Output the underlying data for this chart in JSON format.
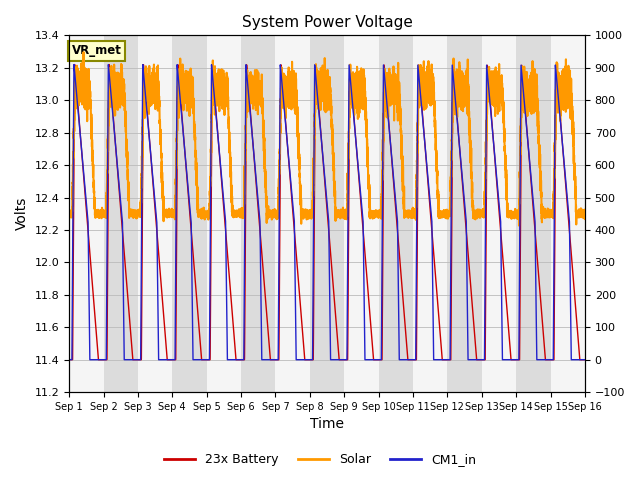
{
  "title": "System Power Voltage",
  "xlabel": "Time",
  "ylabel_left": "Volts",
  "ylim_left": [
    11.2,
    13.4
  ],
  "ylim_right": [
    -100,
    1000
  ],
  "yticks_left": [
    11.2,
    11.4,
    11.6,
    11.8,
    12.0,
    12.2,
    12.4,
    12.6,
    12.8,
    13.0,
    13.2,
    13.4
  ],
  "yticks_right": [
    -100,
    0,
    100,
    200,
    300,
    400,
    500,
    600,
    700,
    800,
    900,
    1000
  ],
  "xtick_labels": [
    "Sep 1",
    "Sep 2",
    "Sep 3",
    "Sep 4",
    "Sep 5",
    "Sep 6",
    "Sep 7",
    "Sep 8",
    "Sep 9",
    "Sep 10",
    "Sep 11",
    "Sep 12",
    "Sep 13",
    "Sep 14",
    "Sep 15",
    "Sep 16"
  ],
  "legend_labels": [
    "23x Battery",
    "Solar",
    "CM1_in"
  ],
  "legend_colors": [
    "#cc0000",
    "#ff9900",
    "#2222cc"
  ],
  "vr_met_label": "VR_met",
  "band_color_light": "#f5f5f5",
  "band_color_dark": "#dcdcdc",
  "n_days": 15,
  "battery_base": 11.4,
  "battery_peak": 13.22,
  "cm1_base": 11.4,
  "cm1_peak": 13.22,
  "solar_base": 12.3,
  "solar_peak": 13.2
}
